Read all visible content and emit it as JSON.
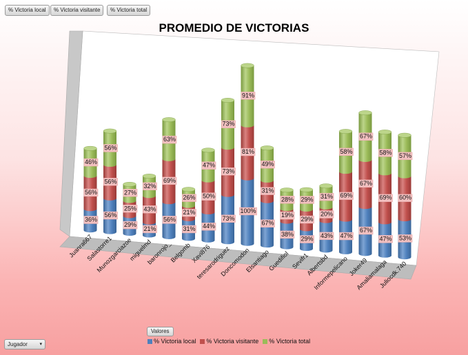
{
  "field_buttons": [
    {
      "label": "% Victoria local"
    },
    {
      "label": "% Victoria visitante"
    },
    {
      "label": "% Victoria total"
    }
  ],
  "filter_button": {
    "label": "Valores"
  },
  "row_filter": {
    "label": "Jugador",
    "arrow": "▾"
  },
  "colors": {
    "local": "#4f81bd",
    "visitante": "#c0504d",
    "total": "#9bbb59",
    "label_bg": "#f2c0c0"
  },
  "chart_data": {
    "type": "bar",
    "stacked": true,
    "three_d": true,
    "title": "PROMEDIO DE VICTORIAS",
    "categories": [
      "Juanra667",
      "Salastorre1",
      "Munozgarciazoe",
      "miguelmd",
      "baronrojo_",
      "Belgomb",
      "Xavi876",
      "teresarodriguez",
      "Doncomodon",
      "Elsantiago",
      "Guedifiol",
      "Sevifr1",
      "Albertsbd",
      "Informepelicano",
      "Joker49",
      "Amaliamalaga",
      "Juliocdk.740"
    ],
    "series": [
      {
        "name": "% Victoria local",
        "values": [
          36,
          56,
          29,
          21,
          56,
          31,
          44,
          73,
          100,
          67,
          38,
          29,
          43,
          47,
          67,
          47,
          53
        ]
      },
      {
        "name": "% Victoria visitante",
        "values": [
          56,
          56,
          25,
          43,
          69,
          21,
          50,
          73,
          81,
          31,
          19,
          29,
          20,
          69,
          67,
          69,
          60
        ]
      },
      {
        "name": "% Victoria total",
        "values": [
          46,
          56,
          27,
          32,
          63,
          26,
          47,
          73,
          91,
          49,
          28,
          29,
          31,
          58,
          67,
          58,
          57
        ]
      }
    ],
    "legend": "bottom",
    "grid": false
  }
}
